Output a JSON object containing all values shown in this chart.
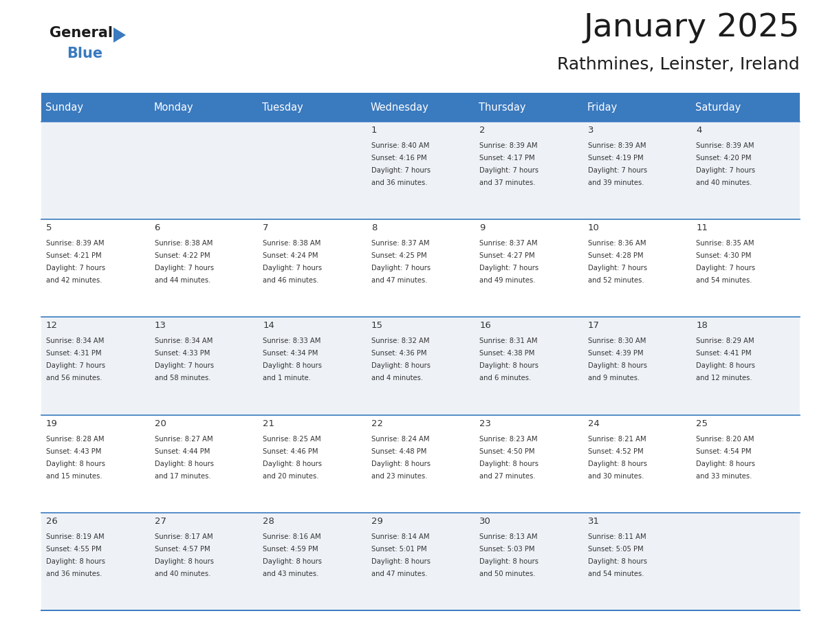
{
  "title": "January 2025",
  "subtitle": "Rathmines, Leinster, Ireland",
  "header_color": "#3a7abf",
  "header_text_color": "#ffffff",
  "weekdays": [
    "Sunday",
    "Monday",
    "Tuesday",
    "Wednesday",
    "Thursday",
    "Friday",
    "Saturday"
  ],
  "row_colors": [
    "#eef2f7",
    "#ffffff"
  ],
  "border_color": "#3a7abf",
  "text_color": "#333333",
  "days": [
    {
      "day": 1,
      "col": 3,
      "row": 0,
      "sunrise": "8:40 AM",
      "sunset": "4:16 PM",
      "daylight": "7 hours and 36 minutes."
    },
    {
      "day": 2,
      "col": 4,
      "row": 0,
      "sunrise": "8:39 AM",
      "sunset": "4:17 PM",
      "daylight": "7 hours and 37 minutes."
    },
    {
      "day": 3,
      "col": 5,
      "row": 0,
      "sunrise": "8:39 AM",
      "sunset": "4:19 PM",
      "daylight": "7 hours and 39 minutes."
    },
    {
      "day": 4,
      "col": 6,
      "row": 0,
      "sunrise": "8:39 AM",
      "sunset": "4:20 PM",
      "daylight": "7 hours and 40 minutes."
    },
    {
      "day": 5,
      "col": 0,
      "row": 1,
      "sunrise": "8:39 AM",
      "sunset": "4:21 PM",
      "daylight": "7 hours and 42 minutes."
    },
    {
      "day": 6,
      "col": 1,
      "row": 1,
      "sunrise": "8:38 AM",
      "sunset": "4:22 PM",
      "daylight": "7 hours and 44 minutes."
    },
    {
      "day": 7,
      "col": 2,
      "row": 1,
      "sunrise": "8:38 AM",
      "sunset": "4:24 PM",
      "daylight": "7 hours and 46 minutes."
    },
    {
      "day": 8,
      "col": 3,
      "row": 1,
      "sunrise": "8:37 AM",
      "sunset": "4:25 PM",
      "daylight": "7 hours and 47 minutes."
    },
    {
      "day": 9,
      "col": 4,
      "row": 1,
      "sunrise": "8:37 AM",
      "sunset": "4:27 PM",
      "daylight": "7 hours and 49 minutes."
    },
    {
      "day": 10,
      "col": 5,
      "row": 1,
      "sunrise": "8:36 AM",
      "sunset": "4:28 PM",
      "daylight": "7 hours and 52 minutes."
    },
    {
      "day": 11,
      "col": 6,
      "row": 1,
      "sunrise": "8:35 AM",
      "sunset": "4:30 PM",
      "daylight": "7 hours and 54 minutes."
    },
    {
      "day": 12,
      "col": 0,
      "row": 2,
      "sunrise": "8:34 AM",
      "sunset": "4:31 PM",
      "daylight": "7 hours and 56 minutes."
    },
    {
      "day": 13,
      "col": 1,
      "row": 2,
      "sunrise": "8:34 AM",
      "sunset": "4:33 PM",
      "daylight": "7 hours and 58 minutes."
    },
    {
      "day": 14,
      "col": 2,
      "row": 2,
      "sunrise": "8:33 AM",
      "sunset": "4:34 PM",
      "daylight": "8 hours and 1 minute."
    },
    {
      "day": 15,
      "col": 3,
      "row": 2,
      "sunrise": "8:32 AM",
      "sunset": "4:36 PM",
      "daylight": "8 hours and 4 minutes."
    },
    {
      "day": 16,
      "col": 4,
      "row": 2,
      "sunrise": "8:31 AM",
      "sunset": "4:38 PM",
      "daylight": "8 hours and 6 minutes."
    },
    {
      "day": 17,
      "col": 5,
      "row": 2,
      "sunrise": "8:30 AM",
      "sunset": "4:39 PM",
      "daylight": "8 hours and 9 minutes."
    },
    {
      "day": 18,
      "col": 6,
      "row": 2,
      "sunrise": "8:29 AM",
      "sunset": "4:41 PM",
      "daylight": "8 hours and 12 minutes."
    },
    {
      "day": 19,
      "col": 0,
      "row": 3,
      "sunrise": "8:28 AM",
      "sunset": "4:43 PM",
      "daylight": "8 hours and 15 minutes."
    },
    {
      "day": 20,
      "col": 1,
      "row": 3,
      "sunrise": "8:27 AM",
      "sunset": "4:44 PM",
      "daylight": "8 hours and 17 minutes."
    },
    {
      "day": 21,
      "col": 2,
      "row": 3,
      "sunrise": "8:25 AM",
      "sunset": "4:46 PM",
      "daylight": "8 hours and 20 minutes."
    },
    {
      "day": 22,
      "col": 3,
      "row": 3,
      "sunrise": "8:24 AM",
      "sunset": "4:48 PM",
      "daylight": "8 hours and 23 minutes."
    },
    {
      "day": 23,
      "col": 4,
      "row": 3,
      "sunrise": "8:23 AM",
      "sunset": "4:50 PM",
      "daylight": "8 hours and 27 minutes."
    },
    {
      "day": 24,
      "col": 5,
      "row": 3,
      "sunrise": "8:21 AM",
      "sunset": "4:52 PM",
      "daylight": "8 hours and 30 minutes."
    },
    {
      "day": 25,
      "col": 6,
      "row": 3,
      "sunrise": "8:20 AM",
      "sunset": "4:54 PM",
      "daylight": "8 hours and 33 minutes."
    },
    {
      "day": 26,
      "col": 0,
      "row": 4,
      "sunrise": "8:19 AM",
      "sunset": "4:55 PM",
      "daylight": "8 hours and 36 minutes."
    },
    {
      "day": 27,
      "col": 1,
      "row": 4,
      "sunrise": "8:17 AM",
      "sunset": "4:57 PM",
      "daylight": "8 hours and 40 minutes."
    },
    {
      "day": 28,
      "col": 2,
      "row": 4,
      "sunrise": "8:16 AM",
      "sunset": "4:59 PM",
      "daylight": "8 hours and 43 minutes."
    },
    {
      "day": 29,
      "col": 3,
      "row": 4,
      "sunrise": "8:14 AM",
      "sunset": "5:01 PM",
      "daylight": "8 hours and 47 minutes."
    },
    {
      "day": 30,
      "col": 4,
      "row": 4,
      "sunrise": "8:13 AM",
      "sunset": "5:03 PM",
      "daylight": "8 hours and 50 minutes."
    },
    {
      "day": 31,
      "col": 5,
      "row": 4,
      "sunrise": "8:11 AM",
      "sunset": "5:05 PM",
      "daylight": "8 hours and 54 minutes."
    }
  ]
}
